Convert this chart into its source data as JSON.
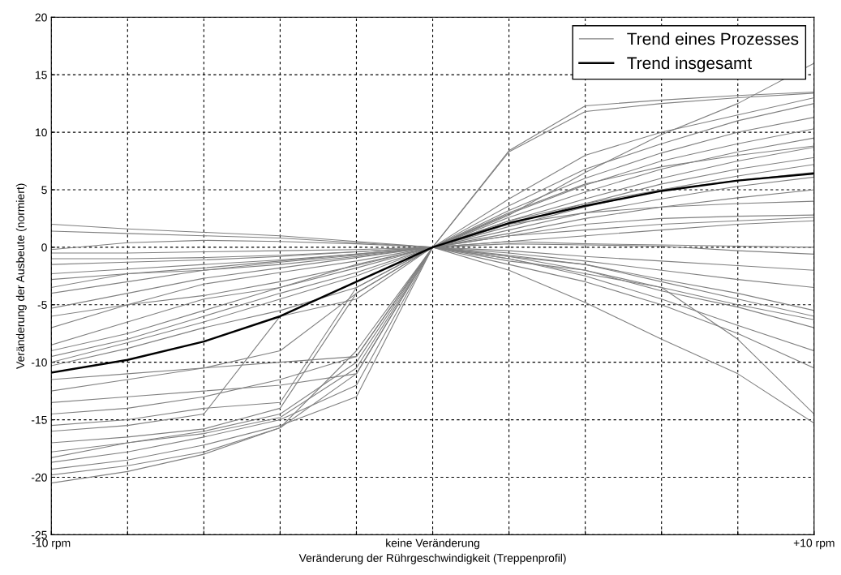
{
  "chart_data": {
    "type": "line",
    "xlabel": "Veränderung der Rührgeschwindigkeit (Treppenprofil)",
    "ylabel": "Veränderung der Ausbeute (normiert)",
    "categories": [
      "-10 rpm",
      null,
      null,
      null,
      null,
      "keine Veränderung",
      null,
      null,
      null,
      null,
      "+10 rpm"
    ],
    "ylim": [
      -25,
      20
    ],
    "yticks": [
      -25,
      -20,
      -15,
      -10,
      -5,
      0,
      5,
      10,
      15,
      20
    ],
    "grid": true,
    "legend": "top right",
    "line_style": "solid",
    "marker": "none",
    "series": [
      {
        "name": "Trend eines Prozesses",
        "color": "#808080",
        "values": [
          2.0,
          1.6,
          1.3,
          1.0,
          0.5,
          0,
          -1.0,
          -2.3,
          -3.5,
          -5.0,
          -6.3
        ]
      },
      {
        "color": "#808080",
        "values": [
          1.4,
          1.2,
          1.0,
          0.8,
          0.4,
          0,
          -0.8,
          -1.5,
          -2.8,
          -4.0,
          -5.5
        ]
      },
      {
        "color": "#808080",
        "values": [
          -0.2,
          0.4,
          0.6,
          0.5,
          0.3,
          0,
          0.3,
          0.2,
          0.1,
          -0.3,
          -0.6
        ]
      },
      {
        "color": "#808080",
        "values": [
          -0.5,
          -0.5,
          -0.4,
          -0.3,
          -0.2,
          0,
          0.5,
          1.0,
          1.5,
          2.0,
          2.3
        ]
      },
      {
        "color": "#808080",
        "values": [
          -1.0,
          -1.0,
          -0.9,
          -0.7,
          -0.4,
          0,
          1.2,
          2.5,
          3.5,
          4.3,
          5.0
        ]
      },
      {
        "color": "#808080",
        "values": [
          -1.5,
          -1.3,
          -1.1,
          -0.8,
          -0.4,
          0,
          1.5,
          3.0,
          4.2,
          5.3,
          6.1
        ]
      },
      {
        "color": "#808080",
        "values": [
          -2.3,
          -1.9,
          -1.5,
          -1.1,
          -0.6,
          0,
          1.8,
          3.5,
          5.0,
          6.2,
          7.2
        ]
      },
      {
        "color": "#808080",
        "values": [
          -3.5,
          -2.3,
          -1.8,
          -1.2,
          -0.6,
          0,
          2.0,
          3.8,
          5.5,
          6.8,
          7.8
        ]
      },
      {
        "color": "#808080",
        "values": [
          -4.0,
          -3.0,
          -2.0,
          -1.3,
          -0.7,
          0,
          2.3,
          4.2,
          6.0,
          7.5,
          8.7
        ]
      },
      {
        "color": "#808080",
        "values": [
          -5.3,
          -4.0,
          -2.7,
          -1.8,
          -0.9,
          0,
          2.6,
          4.8,
          6.8,
          8.3,
          9.5
        ]
      },
      {
        "color": "#808080",
        "values": [
          -7.0,
          -5.0,
          -3.2,
          -2.2,
          -1.2,
          0,
          2.9,
          5.4,
          7.5,
          9.0,
          10.3
        ]
      },
      {
        "color": "#808080",
        "values": [
          -8.5,
          -6.5,
          -4.5,
          -3.5,
          -1.8,
          0,
          3.2,
          6.0,
          8.2,
          10.0,
          11.3
        ]
      },
      {
        "color": "#808080",
        "values": [
          -9.5,
          -8.0,
          -6.0,
          -4.0,
          -2.2,
          0,
          3.6,
          6.8,
          9.0,
          11.0,
          12.5
        ]
      },
      {
        "color": "#808080",
        "values": [
          -10.0,
          -8.3,
          -6.5,
          -4.5,
          -2.5,
          0,
          8.4,
          12.3,
          12.8,
          13.2,
          13.5
        ]
      },
      {
        "color": "#808080",
        "values": [
          -10.3,
          -8.8,
          -7.0,
          -5.5,
          -3.5,
          0,
          8.3,
          11.8,
          12.5,
          13.0,
          13.4
        ]
      },
      {
        "color": "#808080",
        "values": [
          -11.5,
          -11.0,
          -10.5,
          -10.0,
          -9.5,
          0,
          4.2,
          8.0,
          10.0,
          11.5,
          13.0
        ]
      },
      {
        "color": "#808080",
        "values": [
          -12.5,
          -11.5,
          -10.5,
          -9.0,
          -4.0,
          0,
          3.0,
          5.5,
          7.0,
          8.0,
          8.8
        ]
      },
      {
        "color": "#808080",
        "values": [
          -13.5,
          -13.0,
          -12.5,
          -12.0,
          -11.0,
          0,
          2.0,
          3.0,
          3.5,
          3.8,
          4.0
        ]
      },
      {
        "color": "#808080",
        "values": [
          -14.5,
          -14.0,
          -13.0,
          -11.5,
          -9.5,
          0,
          1.0,
          1.5,
          2.0,
          2.3,
          2.6
        ]
      },
      {
        "color": "#808080",
        "values": [
          -15.5,
          -15.0,
          -14.0,
          -13.5,
          -3.5,
          0,
          0.5,
          0.3,
          0.2,
          0.1,
          0.0
        ]
      },
      {
        "color": "#808080",
        "values": [
          -16.0,
          -15.5,
          -14.5,
          -6.0,
          -4.5,
          0,
          -0.3,
          -0.8,
          -1.2,
          -1.6,
          -2.0
        ]
      },
      {
        "color": "#808080",
        "values": [
          -17.0,
          -16.5,
          -15.8,
          -14.0,
          -4.0,
          0,
          -0.5,
          -1.2,
          -2.0,
          -2.8,
          -3.5
        ]
      },
      {
        "color": "#808080",
        "values": [
          -17.8,
          -17.0,
          -16.0,
          -14.5,
          -10.0,
          0,
          -0.7,
          -1.5,
          -3.0,
          -4.5,
          -6.0
        ]
      },
      {
        "color": "#808080",
        "values": [
          -18.3,
          -17.0,
          -16.2,
          -14.8,
          -10.5,
          0,
          -0.8,
          -2.0,
          -3.8,
          -5.2,
          -7.0
        ]
      },
      {
        "color": "#808080",
        "values": [
          -18.7,
          -17.8,
          -16.5,
          -15.0,
          -12.0,
          0,
          -1.0,
          -2.5,
          -4.5,
          -6.8,
          -9.0
        ]
      },
      {
        "color": "#808080",
        "values": [
          -19.3,
          -18.5,
          -17.2,
          -15.5,
          -13.0,
          0,
          -1.5,
          -3.0,
          -5.0,
          -7.5,
          -10.5
        ]
      },
      {
        "color": "#808080",
        "values": [
          -19.8,
          -19.0,
          -17.8,
          -15.7,
          -11.0,
          0,
          -2.0,
          -4.8,
          -8.0,
          -11.0,
          -15.3
        ]
      },
      {
        "color": "#808080",
        "values": [
          -20.5,
          -19.5,
          -18.0,
          -15.7,
          -9.0,
          0,
          -1.2,
          -2.0,
          -3.5,
          -8.0,
          -14.5
        ]
      },
      {
        "color": "#808080",
        "values": [
          -9.0,
          -7.5,
          -5.5,
          -3.5,
          -1.5,
          0,
          2.3,
          3.8,
          5.0,
          5.8,
          6.5
        ]
      },
      {
        "color": "#808080",
        "values": [
          -6.0,
          -5.0,
          -4.2,
          -3.0,
          -1.6,
          0,
          1.0,
          2.0,
          2.5,
          2.7,
          2.8
        ]
      },
      {
        "color": "#808080",
        "values": [
          -2.8,
          -2.3,
          -2.0,
          -1.5,
          -0.8,
          0,
          2.8,
          6.5,
          9.8,
          12.5,
          16.0
        ]
      },
      {
        "name": "Trend insgesamt",
        "color": "#000000",
        "values": [
          -10.9,
          -9.8,
          -8.2,
          -6.0,
          -3.0,
          0,
          2.1,
          3.6,
          4.9,
          5.8,
          6.4
        ]
      }
    ]
  }
}
